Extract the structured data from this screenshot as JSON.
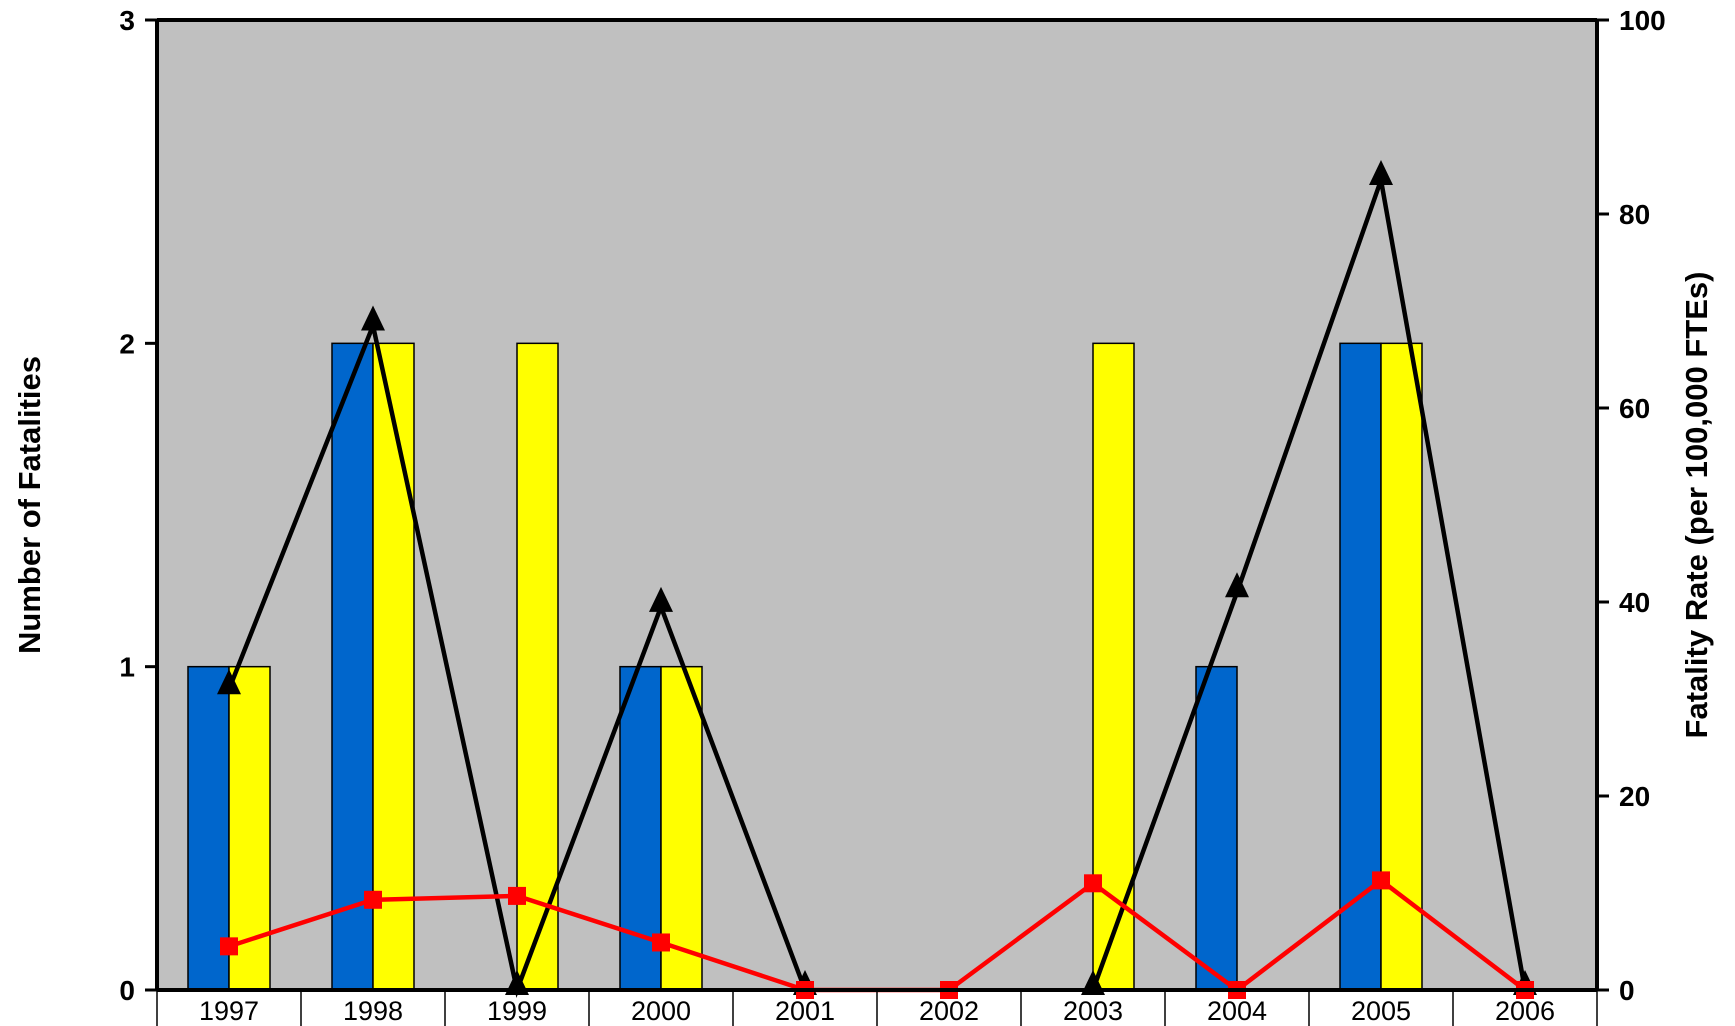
{
  "chart_data": {
    "type": "bar",
    "categories": [
      "1997",
      "1998",
      "1999",
      "2000",
      "2001",
      "2002",
      "2003",
      "2004",
      "2005",
      "2006"
    ],
    "ylabel_left": "Number of Fatalities",
    "ylabel_right": "Fatality Rate (per 100,000 FTEs)",
    "ylim_left": [
      0,
      3
    ],
    "ylim_right": [
      0,
      100
    ],
    "yticks_left": [
      "0",
      "1",
      "2",
      "3"
    ],
    "yticks_right": [
      "0",
      "20",
      "40",
      "60",
      "80",
      "100"
    ],
    "grid": false,
    "plot_background": "#c0c0c0",
    "series": [
      {
        "kind": "bar",
        "axis": "left",
        "color": "#0066cc",
        "values": [
          1,
          2,
          0,
          1,
          0,
          0,
          0,
          1,
          2,
          0
        ]
      },
      {
        "kind": "bar",
        "axis": "left",
        "color": "#ffff00",
        "values": [
          1,
          2,
          2,
          1,
          0,
          0,
          2,
          0,
          2,
          0
        ]
      },
      {
        "kind": "line",
        "axis": "right",
        "color": "#000000",
        "marker": "triangle",
        "values": [
          31,
          68.5,
          0,
          39.5,
          0,
          null,
          0,
          41,
          83.5,
          0
        ]
      },
      {
        "kind": "line",
        "axis": "right",
        "color": "#ff0000",
        "marker": "square",
        "values": [
          4.5,
          9.3,
          9.7,
          4.9,
          0,
          0,
          11,
          0,
          11.3,
          0
        ]
      }
    ]
  }
}
